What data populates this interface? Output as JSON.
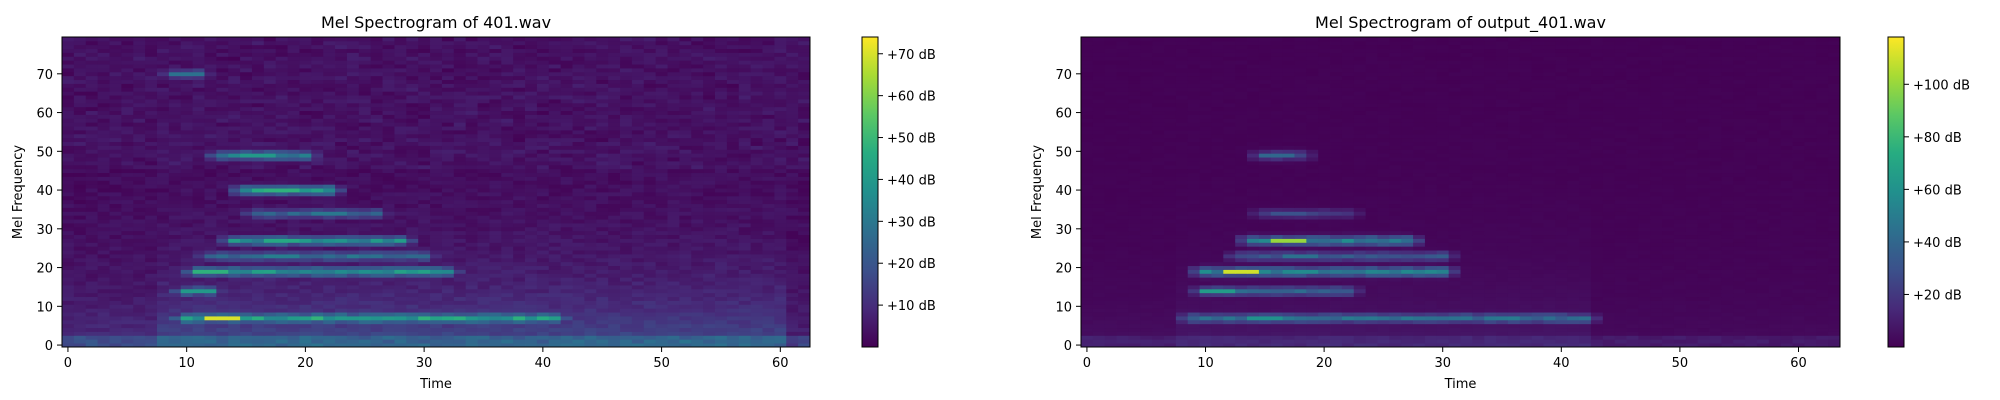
{
  "chart_data": [
    {
      "type": "heatmap",
      "title": "Mel Spectrogram of 401.wav",
      "xlabel": "Time",
      "ylabel": "Mel Frequency",
      "xlim": [
        -0.5,
        62.5
      ],
      "ylim": [
        -0.5,
        79.5
      ],
      "xticks": [
        0,
        10,
        20,
        30,
        40,
        50,
        60
      ],
      "yticks": [
        0,
        10,
        20,
        30,
        40,
        50,
        60,
        70
      ],
      "colormap": "viridis",
      "colorbar": {
        "min": 0,
        "max": 74,
        "ticks": [
          10,
          20,
          30,
          40,
          50,
          60,
          70
        ],
        "tick_labels": [
          "+10 dB",
          "+20 dB",
          "+30 dB",
          "+40 dB",
          "+50 dB",
          "+60 dB",
          "+70 dB"
        ]
      },
      "features": [
        {
          "mel": 7,
          "t_start": 10,
          "t_end": 41,
          "db": 45,
          "peak_at": [
            13,
            70
          ]
        },
        {
          "mel": 19,
          "t_start": 11,
          "t_end": 32,
          "db": 40,
          "peak_at": [
            12,
            48
          ]
        },
        {
          "mel": 27,
          "t_start": 14,
          "t_end": 28,
          "db": 38,
          "peak_at": [
            18,
            45
          ]
        },
        {
          "mel": 40,
          "t_start": 15,
          "t_end": 22,
          "db": 42,
          "peak_at": [
            18,
            48
          ]
        },
        {
          "mel": 49,
          "t_start": 13,
          "t_end": 20,
          "db": 35,
          "peak_at": [
            16,
            40
          ]
        },
        {
          "mel": 14,
          "t_start": 10,
          "t_end": 12,
          "db": 35,
          "peak_at": [
            11,
            40
          ]
        },
        {
          "mel": 23,
          "t_start": 12,
          "t_end": 30,
          "db": 28,
          "peak_at": [
            18,
            32
          ]
        },
        {
          "mel": 34,
          "t_start": 16,
          "t_end": 26,
          "db": 25,
          "peak_at": [
            22,
            30
          ]
        },
        {
          "mel": 70,
          "t_start": 9,
          "t_end": 11,
          "db": 25,
          "peak_at": [
            10,
            28
          ]
        }
      ]
    },
    {
      "type": "heatmap",
      "title": "Mel Spectrogram of output_401.wav",
      "xlabel": "Time",
      "ylabel": "Mel Frequency",
      "xlim": [
        -0.5,
        63.5
      ],
      "ylim": [
        -0.5,
        79.5
      ],
      "xticks": [
        0,
        10,
        20,
        30,
        40,
        50,
        60
      ],
      "yticks": [
        0,
        10,
        20,
        30,
        40,
        50,
        60,
        70
      ],
      "colormap": "viridis",
      "colorbar": {
        "min": 0,
        "max": 118,
        "ticks": [
          20,
          40,
          60,
          80,
          100
        ],
        "tick_labels": [
          "+20 dB",
          "+40 dB",
          "+60 dB",
          "+80 dB",
          "+100 dB"
        ]
      },
      "features": [
        {
          "mel": 19,
          "t_start": 10,
          "t_end": 30,
          "db": 55,
          "peak_at": [
            13,
            110
          ]
        },
        {
          "mel": 27,
          "t_start": 14,
          "t_end": 27,
          "db": 55,
          "peak_at": [
            17,
            100
          ]
        },
        {
          "mel": 7,
          "t_start": 9,
          "t_end": 42,
          "db": 45,
          "peak_at": [
            15,
            60
          ]
        },
        {
          "mel": 14,
          "t_start": 10,
          "t_end": 22,
          "db": 40,
          "peak_at": [
            11,
            65
          ]
        },
        {
          "mel": 23,
          "t_start": 13,
          "t_end": 30,
          "db": 35,
          "peak_at": [
            18,
            45
          ]
        },
        {
          "mel": 49,
          "t_start": 15,
          "t_end": 18,
          "db": 30,
          "peak_at": [
            16,
            40
          ]
        },
        {
          "mel": 34,
          "t_start": 15,
          "t_end": 22,
          "db": 22,
          "peak_at": [
            17,
            30
          ]
        }
      ]
    }
  ]
}
